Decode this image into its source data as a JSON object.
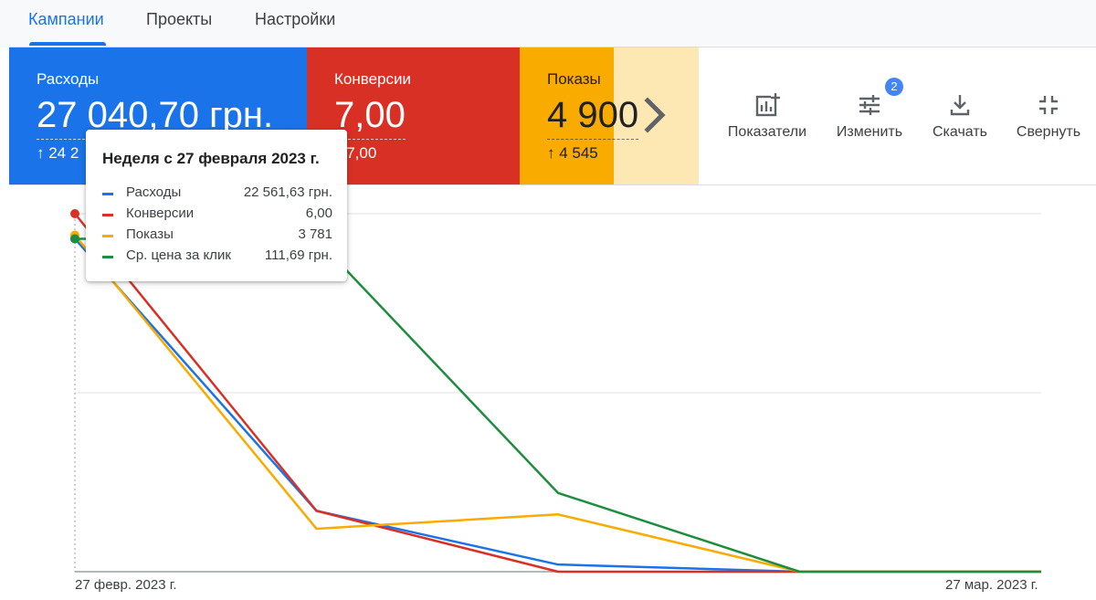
{
  "tabs": [
    {
      "label": "Кампании",
      "active": true
    },
    {
      "label": "Проекты",
      "active": false
    },
    {
      "label": "Настройки",
      "active": false
    }
  ],
  "cards": {
    "spend": {
      "name": "Расходы",
      "value": "27 040,70 грн.",
      "delta": "↑ 24 2",
      "color": "#1a73e8"
    },
    "conversions": {
      "name": "Конверсии",
      "value": "7,00",
      "delta": "↑ 7,00",
      "color": "#d93025"
    },
    "impressions": {
      "name": "Показы",
      "value": "4 900",
      "delta": "↑ 4 545",
      "color": "#f9ab00"
    }
  },
  "toolbar": {
    "metrics_label": "Показатели",
    "adjust_label": "Изменить",
    "adjust_badge": "2",
    "download_label": "Скачать",
    "collapse_label": "Свернуть"
  },
  "tooltip": {
    "title": "Неделя с 27 февраля 2023 г.",
    "rows": [
      {
        "name": "Расходы",
        "value": "22 561,63 грн.",
        "color": "#1a73e8"
      },
      {
        "name": "Конверсии",
        "value": "6,00",
        "color": "#d93025"
      },
      {
        "name": "Показы",
        "value": "3 781",
        "color": "#f9ab00"
      },
      {
        "name": "Ср. цена за клик",
        "value": "111,69 грн.",
        "color": "#1e8e3e"
      }
    ]
  },
  "chart_data": {
    "type": "line",
    "x": [
      "2023-02-27",
      "2023-03-06",
      "2023-03-13",
      "2023-03-20",
      "2023-03-27"
    ],
    "x_tick_labels": [
      "27 февр. 2023 г.",
      "27 мар. 2023 г."
    ],
    "normalized": true,
    "ylim": [
      0,
      1
    ],
    "grid": true,
    "series": [
      {
        "name": "Расходы",
        "color": "#1a73e8",
        "values": [
          0.93,
          0.17,
          0.02,
          0.0,
          0.0
        ]
      },
      {
        "name": "Конверсии",
        "color": "#d93025",
        "values": [
          1.0,
          0.17,
          0.0,
          0.0,
          0.0
        ]
      },
      {
        "name": "Показы",
        "color": "#f9ab00",
        "values": [
          0.94,
          0.12,
          0.16,
          0.0,
          0.0
        ]
      },
      {
        "name": "Ср. цена за клик",
        "color": "#1e8e3e",
        "values": [
          0.93,
          0.93,
          0.22,
          0.0,
          0.0
        ]
      }
    ]
  }
}
